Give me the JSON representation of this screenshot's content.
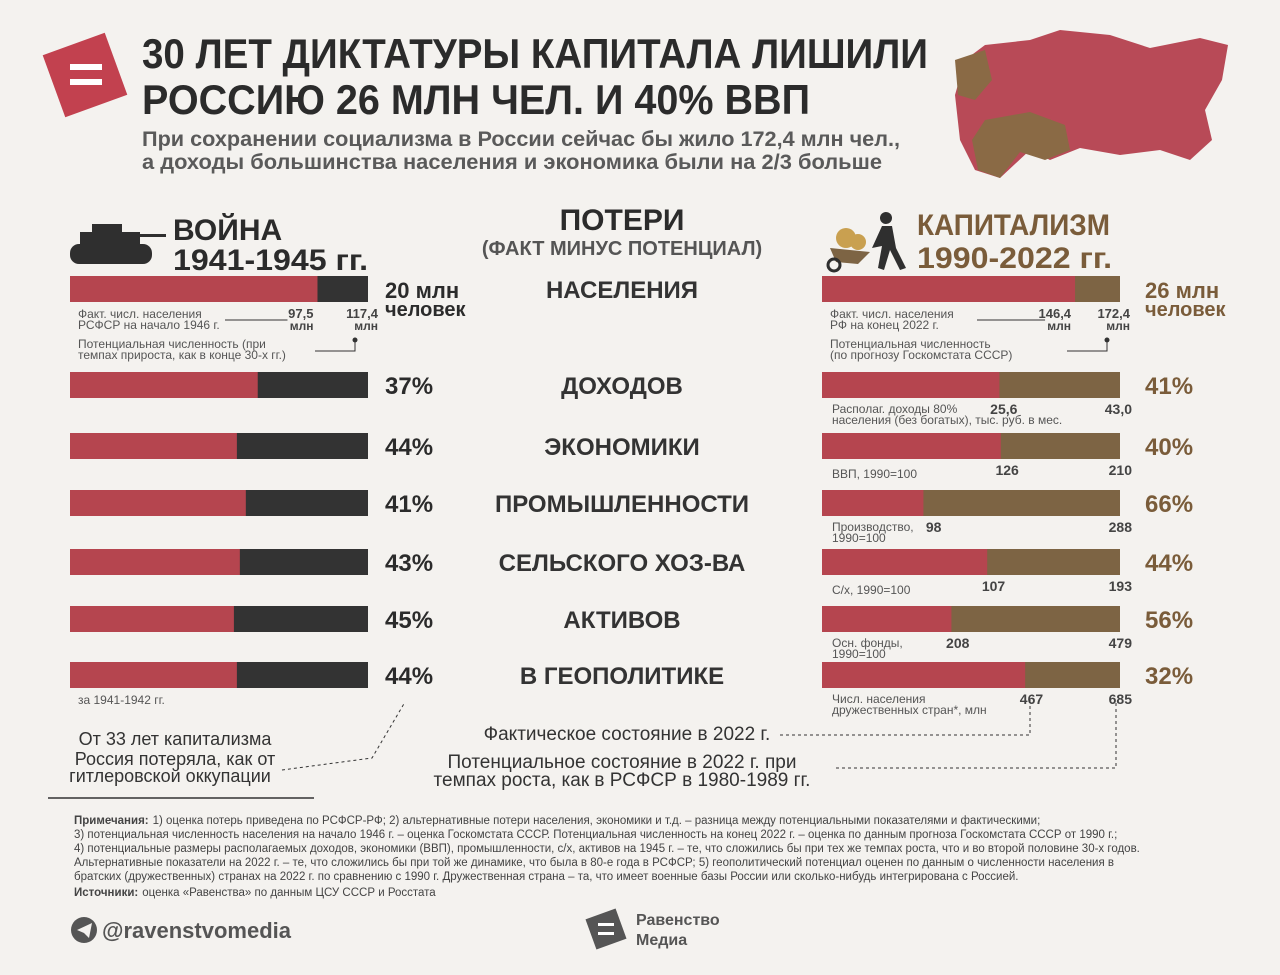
{
  "header": {
    "title_line1": "30 ЛЕТ ДИКТАТУРЫ КАПИТАЛА ЛИШИЛИ",
    "title_line2": "РОССИЮ 26 МЛН ЧЕЛ. И 40% ВВП",
    "subtitle_line1": "При сохранении социализма в России сейчас бы жило 172,4 млн чел.,",
    "subtitle_line2": "а доходы большинства населения и экономика были на 2/3 больше"
  },
  "war": {
    "title": "ВОЙНА",
    "period": "1941-1945 гг."
  },
  "losses": {
    "title": "ПОТЕРИ",
    "subtitle": "(ФАКТ МИНУС ПОТЕНЦИАЛ)"
  },
  "capitalism": {
    "title": "КАПИТАЛИЗМ",
    "period": "1990-2022 гг."
  },
  "population": {
    "category": "НАСЕЛЕНИЯ",
    "left": {
      "actual": 97.5,
      "actual_label": "97,5",
      "potential": 117.4,
      "potential_label": "117,4",
      "unit": "млн",
      "note_actual": [
        "Факт. числ. населения",
        "РСФСР на начало 1946 г."
      ],
      "note_potential": [
        "Потенциальная численность (при",
        "темпах прироста, как в конце 30-х гг.)"
      ],
      "result": [
        "20 млн",
        "человек"
      ]
    },
    "right": {
      "actual": 146.4,
      "actual_label": "146,4",
      "potential": 172.4,
      "potential_label": "172,4",
      "unit": "млн",
      "note_actual": [
        "Факт. числ. населения",
        "РФ на конец 2022 г."
      ],
      "note_potential": [
        "Потенциальная численность",
        "(по прогнозу Госкомстата СССР)"
      ],
      "result": [
        "26 млн",
        "человек"
      ]
    }
  },
  "rows": [
    {
      "category": "ДОХОДОВ",
      "left": {
        "loss": 37,
        "loss_label": "37%"
      },
      "right": {
        "actual": 25.6,
        "actual_label": "25,6",
        "potential": 43.0,
        "potential_label": "43,0",
        "loss": 41,
        "loss_label": "41%",
        "note": [
          "Располаг. доходы 80%",
          "населения (без богатых), тыс. руб. в мес."
        ]
      }
    },
    {
      "category": "ЭКОНОМИКИ",
      "left": {
        "loss": 44,
        "loss_label": "44%"
      },
      "right": {
        "actual": 126,
        "potential": 210,
        "loss": 40,
        "loss_label": "40%",
        "note": [
          "ВВП, 1990=100"
        ]
      }
    },
    {
      "category": "ПРОМЫШЛЕННОСТИ",
      "left": {
        "loss": 41,
        "loss_label": "41%"
      },
      "right": {
        "actual": 98,
        "potential": 288,
        "loss": 66,
        "loss_label": "66%",
        "note": [
          "Производство,",
          "1990=100"
        ]
      }
    },
    {
      "category": "СЕЛЬСКОГО ХОЗ-ВА",
      "left": {
        "loss": 43,
        "loss_label": "43%"
      },
      "right": {
        "actual": 107,
        "potential": 193,
        "loss": 44,
        "loss_label": "44%",
        "note": [
          "С/х, 1990=100"
        ]
      }
    },
    {
      "category": "АКТИВОВ",
      "left": {
        "loss": 45,
        "loss_label": "45%"
      },
      "right": {
        "actual": 208,
        "potential": 479,
        "loss": 56,
        "loss_label": "56%",
        "note": [
          "Осн. фонды,",
          "1990=100"
        ]
      }
    },
    {
      "category": "В ГЕОПОЛИТИКЕ",
      "left": {
        "loss": 44,
        "loss_label": "44%",
        "note": [
          "за 1941-1942 гг."
        ]
      },
      "right": {
        "actual": 467,
        "potential": 685,
        "loss": 32,
        "loss_label": "32%",
        "note": [
          "Числ. населения",
          "дружественных стран*, млн"
        ]
      }
    }
  ],
  "comparison_note": [
    "От 33 лет капитализма",
    "Россия потеряла, как от",
    "гитлеровской оккупации"
  ],
  "legend": {
    "actual": "Фактическое состояние в 2022 г.",
    "potential": [
      "Потенциальное состояние в 2022 г. при",
      "темпах роста, как в РСФСР в 1980-1989 гг."
    ]
  },
  "notes": {
    "label": "Примечания:",
    "lines": [
      "1) оценка потерь приведена по РСФСР-РФ; 2) альтернативные потери населения, экономики и т.д. – разница между потенциальными показателями и фактическими;",
      "3) потенциальная численность населения на начало 1946 г. – оценка Госкомстата СССР. Потенциальная численность на конец 2022 г. – оценка по данным прогноза Госкомстата СССР от 1990 г.;",
      "4) потенциальные размеры располагаемых доходов, экономики (ВВП), промышленности, с/х, активов на 1945 г. – те, что сложились бы при тех же темпах роста, что и во второй половине 30-х годов.",
      "Альтернативные показатели на 2022 г. – те, что сложились бы при той же динамике, что была в 80-е года в РСФСР; 5) геополитический потенциал оценен по данным о численности населения в",
      "братских (дружественных) странах на 2022 г. по сравнению с 1990 г. Дружественная страна – та, что имеет военные базы России или сколько-нибудь интегрирована с Россией."
    ]
  },
  "sources": {
    "label": "Источники:",
    "text": "оценка «Равенства» по данным ЦСУ СССР и Росстата"
  },
  "footer": {
    "handle": "@ravenstvomedia",
    "brand": [
      "Равенство",
      "Медиа"
    ]
  }
}
